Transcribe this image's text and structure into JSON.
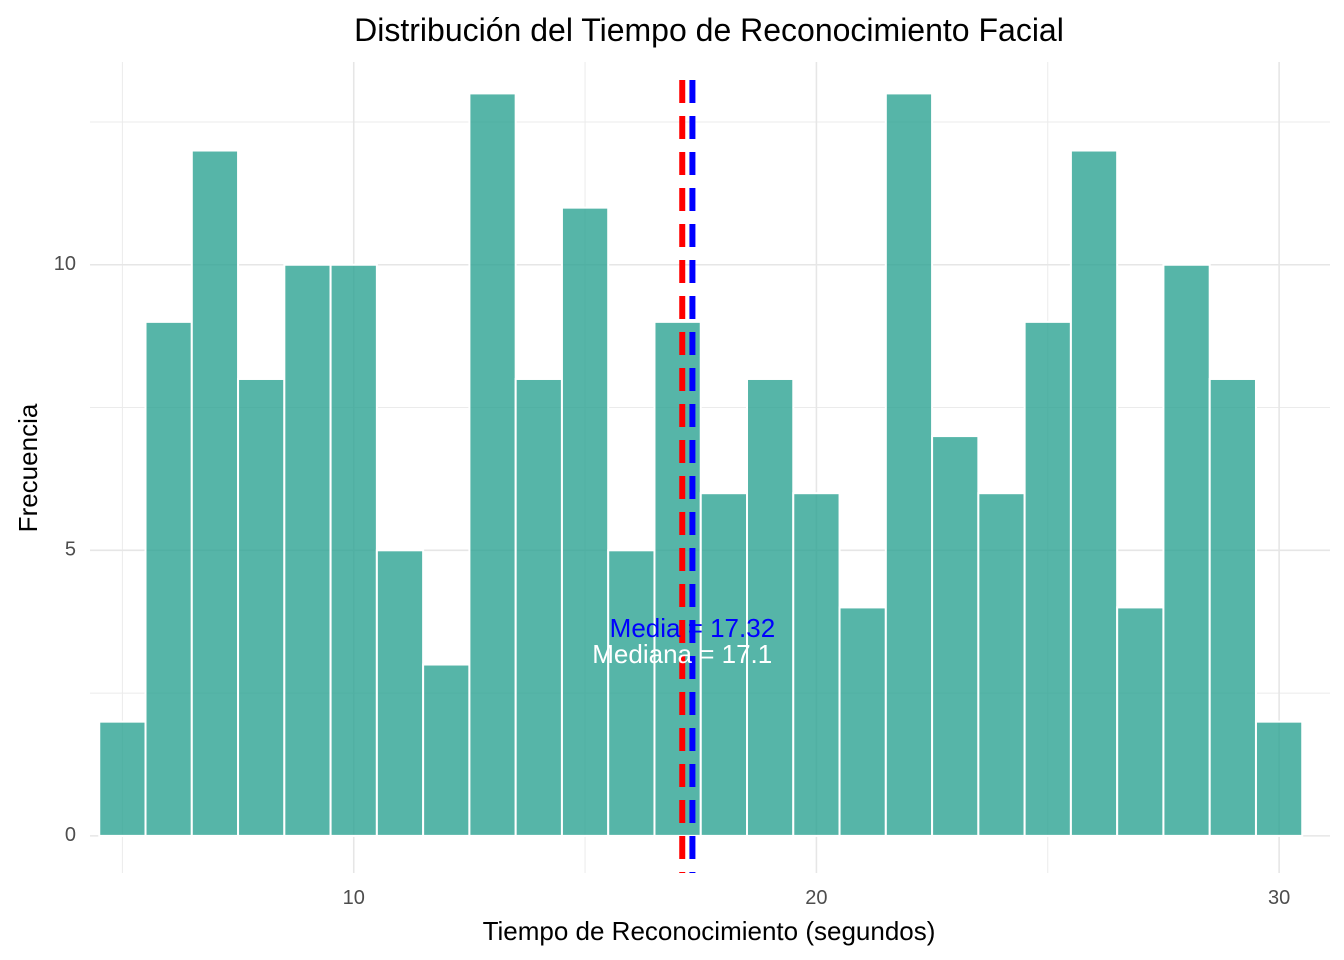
{
  "chart_data": {
    "type": "bar",
    "title": "Distribución del Tiempo de Reconocimiento Facial",
    "xlabel": "Tiempo de Reconocimiento (segundos)",
    "ylabel": "Frecuencia",
    "xlim": [
      4.3,
      31.1
    ],
    "ylim": [
      -0.65,
      13.55
    ],
    "x_ticks": [
      10,
      20,
      30
    ],
    "y_ticks": [
      0,
      5,
      10
    ],
    "grid": true,
    "bar_color": "#26A08F",
    "bar_outline": "#ffffff",
    "bins": [
      {
        "x0": 4.5,
        "x1": 5.5,
        "count": 2
      },
      {
        "x0": 5.5,
        "x1": 6.5,
        "count": 9
      },
      {
        "x0": 6.5,
        "x1": 7.5,
        "count": 12
      },
      {
        "x0": 7.5,
        "x1": 8.5,
        "count": 8
      },
      {
        "x0": 8.5,
        "x1": 9.5,
        "count": 10
      },
      {
        "x0": 9.5,
        "x1": 10.5,
        "count": 10
      },
      {
        "x0": 10.5,
        "x1": 11.5,
        "count": 5
      },
      {
        "x0": 11.5,
        "x1": 12.5,
        "count": 3
      },
      {
        "x0": 12.5,
        "x1": 13.5,
        "count": 13
      },
      {
        "x0": 13.5,
        "x1": 14.5,
        "count": 8
      },
      {
        "x0": 14.5,
        "x1": 15.5,
        "count": 11
      },
      {
        "x0": 15.5,
        "x1": 16.5,
        "count": 5
      },
      {
        "x0": 16.5,
        "x1": 17.5,
        "count": 9
      },
      {
        "x0": 17.5,
        "x1": 18.5,
        "count": 6
      },
      {
        "x0": 18.5,
        "x1": 19.5,
        "count": 8
      },
      {
        "x0": 19.5,
        "x1": 20.5,
        "count": 6
      },
      {
        "x0": 20.5,
        "x1": 21.5,
        "count": 4
      },
      {
        "x0": 21.5,
        "x1": 22.5,
        "count": 13
      },
      {
        "x0": 22.5,
        "x1": 23.5,
        "count": 7
      },
      {
        "x0": 23.5,
        "x1": 24.5,
        "count": 6
      },
      {
        "x0": 24.5,
        "x1": 25.5,
        "count": 9
      },
      {
        "x0": 25.5,
        "x1": 26.5,
        "count": 12
      },
      {
        "x0": 26.5,
        "x1": 27.5,
        "count": 4
      },
      {
        "x0": 27.5,
        "x1": 28.5,
        "count": 10
      },
      {
        "x0": 28.5,
        "x1": 29.5,
        "count": 8
      },
      {
        "x0": 29.5,
        "x1": 30.5,
        "count": 2
      }
    ],
    "reference_lines": [
      {
        "value": 17.1,
        "color": "#FF0000",
        "style": "dashed",
        "label": "Mediana = 17.1",
        "label_color": "#ffffff",
        "label_y": 3.15
      },
      {
        "value": 17.32,
        "color": "#0000FF",
        "style": "dashed",
        "label": "Media = 17.32",
        "label_color": "#0000FF",
        "label_y": 3.6
      }
    ]
  }
}
